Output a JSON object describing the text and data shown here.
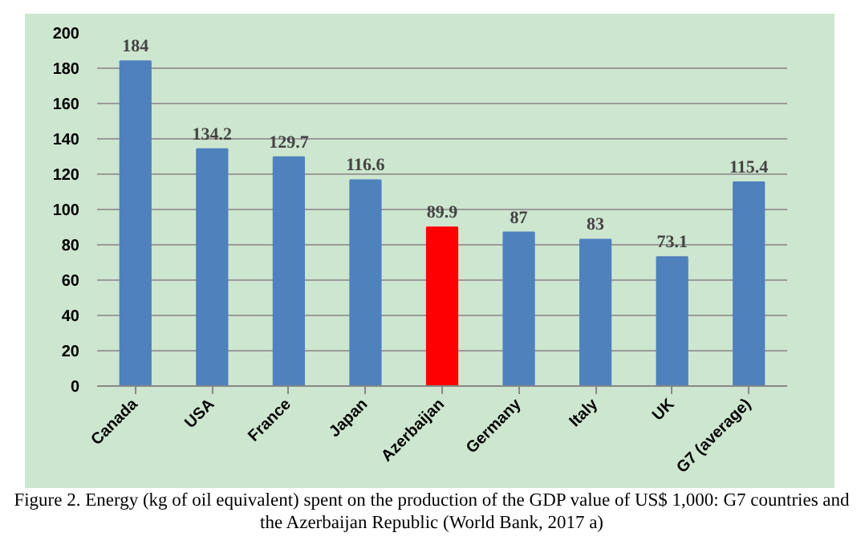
{
  "chart_data": {
    "type": "bar",
    "categories": [
      "Canada",
      "USA",
      "France",
      "Japan",
      "Azerbaijan",
      "Germany",
      "Italy",
      "UK",
      "G7 (average)"
    ],
    "values": [
      184,
      134.2,
      129.7,
      116.6,
      89.9,
      87,
      83,
      73.1,
      115.4
    ],
    "colors": [
      "#4f81bd",
      "#4f81bd",
      "#4f81bd",
      "#4f81bd",
      "#ff0000",
      "#4f81bd",
      "#4f81bd",
      "#4f81bd",
      "#4f81bd"
    ],
    "ylim": [
      0,
      200
    ],
    "yticks": [
      0,
      20,
      40,
      60,
      80,
      100,
      120,
      140,
      160,
      180,
      200
    ],
    "grid": "y",
    "data_labels": true,
    "annotations": [
      "Figure 2. Energy (kg of oil equivalent) spent on the production of the GDP value of US$ 1,000: G7 countries and the Azerbaijan Republic (World Bank, 2017 a)"
    ]
  }
}
